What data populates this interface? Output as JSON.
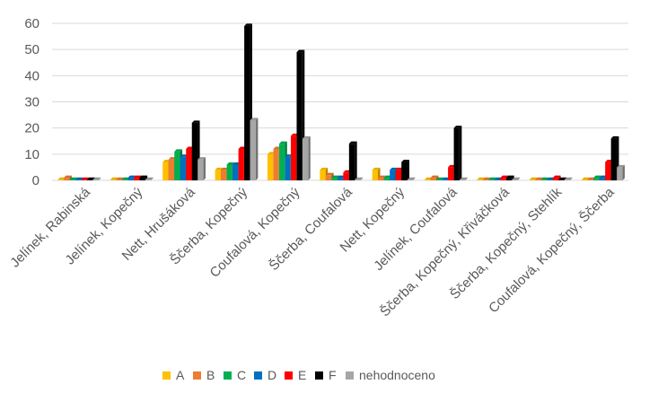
{
  "chart_data": {
    "type": "bar",
    "categories": [
      "Jelínek, Rabinská",
      "Jelínek, Kopečný",
      "Nett, Hrušáková",
      "Ščerba, Kopečný",
      "Coufalová, Kopečný",
      "Ščerba, Coufalová",
      "Nett, Kopečný",
      "Jelínek, Coufalová",
      "Ščerba, Kopečný, Křiváčková",
      "Ščerba, Kopečný, Stehlík",
      "Coufalová, Kopečný, Ščerba"
    ],
    "series": [
      {
        "name": "A",
        "color": "#FFC000",
        "values": [
          0,
          0,
          7,
          4,
          10,
          4,
          4,
          0,
          0,
          0,
          0
        ]
      },
      {
        "name": "B",
        "color": "#ED7D31",
        "values": [
          1,
          0,
          8,
          4,
          12,
          2,
          1,
          1,
          0,
          0,
          0
        ]
      },
      {
        "name": "C",
        "color": "#00B050",
        "values": [
          0,
          0,
          11,
          6,
          14,
          1,
          1,
          0,
          0,
          0,
          1
        ]
      },
      {
        "name": "D",
        "color": "#0070C0",
        "values": [
          0,
          1,
          9,
          6,
          9,
          1,
          4,
          0,
          0,
          0,
          1
        ]
      },
      {
        "name": "E",
        "color": "#FF0000",
        "values": [
          0,
          1,
          12,
          12,
          17,
          3,
          4,
          5,
          1,
          1,
          7
        ]
      },
      {
        "name": "F",
        "color": "#000000",
        "values": [
          0,
          1,
          22,
          59,
          49,
          14,
          7,
          20,
          1,
          0,
          16
        ]
      },
      {
        "name": "nehodnoceno",
        "color": "#A6A6A6",
        "values": [
          0,
          0,
          8,
          23,
          16,
          0,
          0,
          0,
          0,
          0,
          5
        ]
      }
    ],
    "yticks": [
      0,
      10,
      20,
      30,
      40,
      50,
      60
    ],
    "ylim": [
      0,
      60
    ],
    "grid": true,
    "legend": "bottom",
    "style": "3d-clustered"
  }
}
